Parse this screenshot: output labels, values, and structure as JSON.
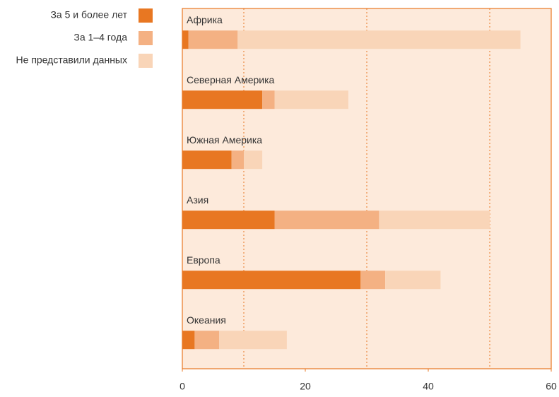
{
  "chart_data": {
    "type": "stacked_barh",
    "categories": [
      "Африка",
      "Северная Америка",
      "Южная Америка",
      "Азия",
      "Европа",
      "Океания"
    ],
    "series": [
      {
        "name": "За 5 и более лет",
        "color": "#e87722",
        "values": [
          1,
          13,
          8,
          15,
          29,
          2
        ]
      },
      {
        "name": "За 1–4 года",
        "color": "#f4b183",
        "values": [
          8,
          2,
          2,
          17,
          4,
          4
        ]
      },
      {
        "name": "Не представили данных",
        "color": "#f9d5b8",
        "values": [
          46,
          12,
          3,
          18,
          9,
          11
        ]
      }
    ],
    "xlim": [
      0,
      60
    ],
    "xticks": [
      0,
      20,
      40,
      60
    ],
    "xgrid": [
      10,
      30,
      50
    ],
    "background": "#fdeadb",
    "frame_color": "#e87722"
  }
}
